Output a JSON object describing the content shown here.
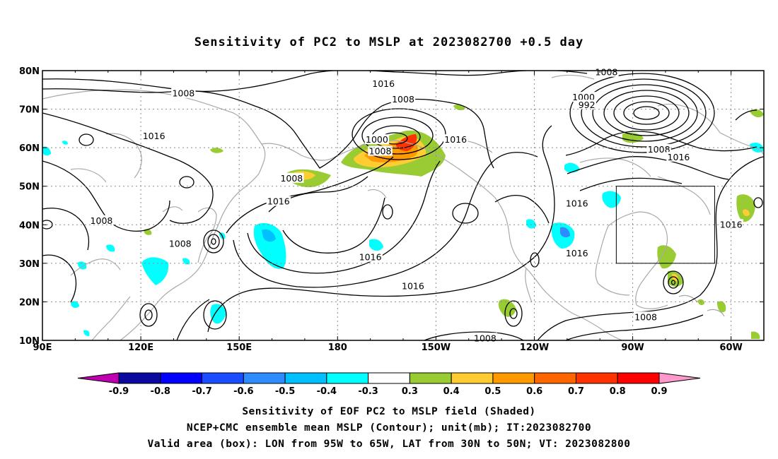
{
  "title": "Sensitivity of PC2 to MSLP at 2023082700 +0.5 day",
  "captions": [
    "Sensitivity of EOF PC2 to MSLP field (Shaded)",
    "NCEP+CMC ensemble mean MSLP (Contour); unit(mb); IT:2023082700",
    "Valid area (box): LON from 95W to 65W, LAT from 30N to 50N; VT: 2023082800"
  ],
  "map": {
    "lon_range": [
      90,
      310
    ],
    "lat_range": [
      10,
      80
    ],
    "lat_ticks": [
      {
        "value": 10,
        "label": "10N"
      },
      {
        "value": 20,
        "label": "20N"
      },
      {
        "value": 30,
        "label": "30N"
      },
      {
        "value": 40,
        "label": "40N"
      },
      {
        "value": 50,
        "label": "50N"
      },
      {
        "value": 60,
        "label": "60N"
      },
      {
        "value": 70,
        "label": "70N"
      },
      {
        "value": 80,
        "label": "80N"
      }
    ],
    "lon_ticks": [
      {
        "value": 90,
        "label": "90E"
      },
      {
        "value": 120,
        "label": "120E"
      },
      {
        "value": 150,
        "label": "150E"
      },
      {
        "value": 180,
        "label": "180"
      },
      {
        "value": 210,
        "label": "150W"
      },
      {
        "value": 240,
        "label": "120W"
      },
      {
        "value": 270,
        "label": "90W"
      },
      {
        "value": 300,
        "label": "60W"
      }
    ],
    "grid": true,
    "valid_box": {
      "lon": [
        265,
        295
      ],
      "lat": [
        30,
        50
      ]
    }
  },
  "colorbar": {
    "labels": [
      "-0.9",
      "-0.8",
      "-0.7",
      "-0.6",
      "-0.5",
      "-0.4",
      "-0.3",
      "0.3",
      "0.4",
      "0.5",
      "0.6",
      "0.7",
      "0.8",
      "0.9"
    ],
    "colors": [
      "#c000b0",
      "#0a0aa0",
      "#0000ff",
      "#1a4dff",
      "#2f8cff",
      "#00c0ff",
      "#00ffff",
      "#ffffff",
      "#99cc33",
      "#ffcc33",
      "#ff9900",
      "#ff6600",
      "#ff3300",
      "#ff0000",
      "#ff99cc"
    ]
  },
  "contour_labels": [
    {
      "text": "1016",
      "lon": 194,
      "lat": 76.5
    },
    {
      "text": "1008",
      "lon": 262,
      "lat": 79.5
    },
    {
      "text": "1008",
      "lon": 133,
      "lat": 74
    },
    {
      "text": "1008",
      "lon": 200,
      "lat": 72.5
    },
    {
      "text": "1000",
      "lon": 255,
      "lat": 73
    },
    {
      "text": "992",
      "lon": 256,
      "lat": 71
    },
    {
      "text": "1016",
      "lon": 124,
      "lat": 63
    },
    {
      "text": "1000",
      "lon": 192,
      "lat": 62
    },
    {
      "text": "1008",
      "lon": 193,
      "lat": 59
    },
    {
      "text": "1016",
      "lon": 216,
      "lat": 62
    },
    {
      "text": "1008",
      "lon": 278,
      "lat": 59.5
    },
    {
      "text": "1016",
      "lon": 284,
      "lat": 57.5
    },
    {
      "text": "1008",
      "lon": 166,
      "lat": 52
    },
    {
      "text": "1016",
      "lon": 162,
      "lat": 46
    },
    {
      "text": "1016",
      "lon": 253,
      "lat": 45.5
    },
    {
      "text": "1008",
      "lon": 108,
      "lat": 41
    },
    {
      "text": "1016",
      "lon": 300,
      "lat": 40
    },
    {
      "text": "1008",
      "lon": 132,
      "lat": 35
    },
    {
      "text": "1016",
      "lon": 253,
      "lat": 32.5
    },
    {
      "text": "1016",
      "lon": 190,
      "lat": 31.5
    },
    {
      "text": "1016",
      "lon": 203,
      "lat": 24
    },
    {
      "text": "1008",
      "lon": 274,
      "lat": 16
    },
    {
      "text": "1008",
      "lon": 225,
      "lat": 10.5
    }
  ]
}
